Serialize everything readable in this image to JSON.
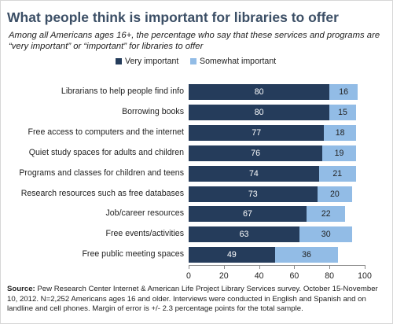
{
  "title": "What people think is important for libraries to offer",
  "subtitle": "Among all Americans ages 16+, the percentage who say that these services and programs are “very important” or “important” for libraries to offer",
  "source_label": "Source:",
  "source_text": "Pew Research Center Internet & American Life Project Library Services survey. October 15-November 10, 2012. N=2,252 Americans ages 16 and older. Interviews were conducted in English and Spanish and on landline and cell phones. Margin of error is +/- 2.3 percentage points for the total sample.",
  "colors": {
    "very_important": "#253c5b",
    "somewhat_important": "#92bce6",
    "title": "#3c4f66"
  },
  "chart_data": {
    "type": "bar",
    "orientation": "horizontal",
    "stacked": true,
    "categories": [
      "Librarians to help people find info",
      "Borrowing books",
      "Free access to computers and the internet",
      "Quiet study spaces for adults and children",
      "Programs and classes for children and teens",
      "Research resources such as free databases",
      "Job/career resources",
      "Free events/activities",
      "Free public meeting spaces"
    ],
    "series": [
      {
        "name": "Very important",
        "values": [
          80,
          80,
          77,
          76,
          74,
          73,
          67,
          63,
          49
        ]
      },
      {
        "name": "Somewhat important",
        "values": [
          16,
          15,
          18,
          19,
          21,
          20,
          22,
          30,
          36
        ]
      }
    ],
    "xlim": [
      0,
      100
    ],
    "xticks": [
      0,
      20,
      40,
      60,
      80,
      100
    ],
    "grid": false,
    "legend_position": "top",
    "data_labels": true
  }
}
